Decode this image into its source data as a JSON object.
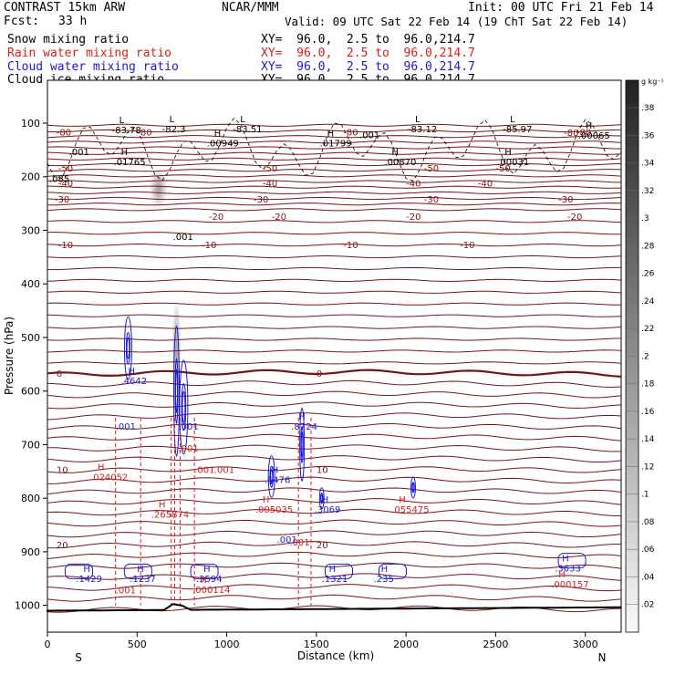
{
  "header": {
    "model": "CONTRAST 15km ARW",
    "forecast_label": "Fcst:",
    "forecast_value": "33 h",
    "center": "NCAR/MMM",
    "init": "Init: 00 UTC Fri 21 Feb 14",
    "valid": "Valid: 09 UTC Sat 22 Feb 14 (19 ChT Sat 22 Feb 14)"
  },
  "legend": [
    {
      "label": "Snow mixing ratio",
      "xy": "XY=  96.0,  2.5 to  96.0,214.7",
      "color": "#000000"
    },
    {
      "label": "Rain water mixing ratio",
      "xy": "XY=  96.0,  2.5 to  96.0,214.7",
      "color": "#d42020"
    },
    {
      "label": "Cloud water mixing ratio",
      "xy": "XY=  96.0,  2.5 to  96.0,214.7",
      "color": "#1a1ad0"
    },
    {
      "label": "Cloud ice mixing ratio",
      "xy": "XY=  96.0,  2.5 to  96.0,214.7",
      "color": "#000000"
    }
  ],
  "colorbar": {
    "unit": "g kg⁻¹",
    "labels": [
      ".38",
      ".36",
      ".34",
      ".32",
      ".3",
      ".28",
      ".26",
      ".24",
      ".22",
      ".2",
      ".18",
      ".16",
      ".14",
      ".12",
      ".1",
      ".08",
      ".06",
      ".04",
      ".02"
    ]
  },
  "chart_data": {
    "type": "cross-section",
    "xlabel": "Distance (km)",
    "ylabel": "Pressure (hPa)",
    "xlim": [
      0,
      3200
    ],
    "ylim": [
      1050,
      20
    ],
    "xticks": [
      0,
      500,
      1000,
      1500,
      2000,
      2500,
      3000
    ],
    "yticks": [
      100,
      200,
      300,
      400,
      500,
      600,
      700,
      800,
      900,
      1000
    ],
    "x_end_labels": {
      "left": "S",
      "right": "N"
    },
    "temperature_contours_C": [
      {
        "label": "-80",
        "p": 118
      },
      {
        "label": "-50",
        "p": 185
      },
      {
        "label": "-40",
        "p": 213
      },
      {
        "label": "-30",
        "p": 243
      },
      {
        "label": "-20",
        "p": 275
      },
      {
        "label": "-10",
        "p": 328
      },
      {
        "label": "0",
        "p": 568
      },
      {
        "label": "10",
        "p": 748
      },
      {
        "label": "20",
        "p": 888
      }
    ],
    "hl_labels": [
      {
        "text": "L",
        "value": "-83.78",
        "x": 400,
        "p": 100,
        "color": "black"
      },
      {
        "text": "L",
        "value": "-82.3",
        "x": 680,
        "p": 98,
        "color": "black"
      },
      {
        "text": "L",
        "value": "-83.51",
        "x": 1075,
        "p": 98,
        "color": "black"
      },
      {
        "text": "L",
        "value": "-83.12",
        "x": 2050,
        "p": 98,
        "color": "black"
      },
      {
        "text": "L",
        "value": "-85.97",
        "x": 2580,
        "p": 98,
        "color": "black"
      },
      {
        "text": "H",
        "value": ".00065",
        "x": 3000,
        "p": 110,
        "color": "black"
      },
      {
        "text": "H",
        "value": ".00949",
        "x": 930,
        "p": 125,
        "color": "black"
      },
      {
        "text": "H",
        "value": ".01799",
        "x": 1560,
        "p": 125,
        "color": "black"
      },
      {
        "text": "H",
        "value": ".00870",
        "x": 1920,
        "p": 160,
        "color": "black"
      },
      {
        "text": "H",
        "value": ".00031",
        "x": 2550,
        "p": 160,
        "color": "black"
      },
      {
        "text": "H",
        "value": ".01765",
        "x": 410,
        "p": 160,
        "color": "black"
      },
      {
        "text": "H",
        "value": ".4642",
        "x": 450,
        "p": 568,
        "color": "blue"
      },
      {
        "text": "H",
        "value": ".8724",
        "x": 1400,
        "p": 653,
        "color": "blue"
      },
      {
        "text": "H",
        "value": ".5476",
        "x": 1250,
        "p": 753,
        "color": "blue"
      },
      {
        "text": "H",
        "value": ".3069",
        "x": 1530,
        "p": 808,
        "color": "blue"
      },
      {
        "text": "H",
        "value": ".024052",
        "x": 280,
        "p": 748,
        "color": "red"
      },
      {
        "text": "H",
        "value": ".265874",
        "x": 620,
        "p": 818,
        "color": "red"
      },
      {
        "text": "H",
        "value": ".005035",
        "x": 1200,
        "p": 808,
        "color": "red"
      },
      {
        "text": "H",
        "value": ".055475",
        "x": 1960,
        "p": 808,
        "color": "red"
      },
      {
        "text": "H",
        "value": ".1429",
        "x": 200,
        "p": 938,
        "color": "blue"
      },
      {
        "text": "H",
        "value": ".1237",
        "x": 500,
        "p": 938,
        "color": "blue"
      },
      {
        "text": "H",
        "value": ".3594",
        "x": 870,
        "p": 938,
        "color": "blue"
      },
      {
        "text": "H",
        "value": ".000114",
        "x": 850,
        "p": 958,
        "color": "red"
      },
      {
        "text": "H",
        "value": ".1321",
        "x": 1570,
        "p": 938,
        "color": "blue"
      },
      {
        "text": "H",
        "value": ".235",
        "x": 1860,
        "p": 938,
        "color": "blue"
      },
      {
        "text": "H",
        "value": ".3633",
        "x": 2870,
        "p": 918,
        "color": "blue"
      },
      {
        "text": "H",
        "value": ".000157",
        "x": 2850,
        "p": 948,
        "color": "red"
      }
    ],
    "small_labels": [
      {
        "text": ".001",
        "x": 120,
        "p": 160,
        "color": "black"
      },
      {
        "text": ".085",
        "x": 10,
        "p": 210,
        "color": "black"
      },
      {
        "text": ".001",
        "x": 700,
        "p": 318,
        "color": "black"
      },
      {
        "text": ".001",
        "x": 1740,
        "p": 128,
        "color": "black"
      },
      {
        "text": ".001",
        "x": 380,
        "p": 672,
        "color": "blue"
      },
      {
        "text": ".001",
        "x": 730,
        "p": 672,
        "color": "blue"
      },
      {
        "text": ".001",
        "x": 730,
        "p": 713,
        "color": "red"
      },
      {
        "text": ".001",
        "x": 820,
        "p": 753,
        "color": "red"
      },
      {
        "text": ".001",
        "x": 930,
        "p": 753,
        "color": "red"
      },
      {
        "text": ".001",
        "x": 1280,
        "p": 883,
        "color": "blue"
      },
      {
        "text": ".001",
        "x": 1350,
        "p": 888,
        "color": "red"
      },
      {
        "text": ".001",
        "x": 380,
        "p": 978,
        "color": "red"
      }
    ],
    "extra_values": {
      "top_right_snow": "-80",
      "cloud_ice": ".001"
    }
  }
}
